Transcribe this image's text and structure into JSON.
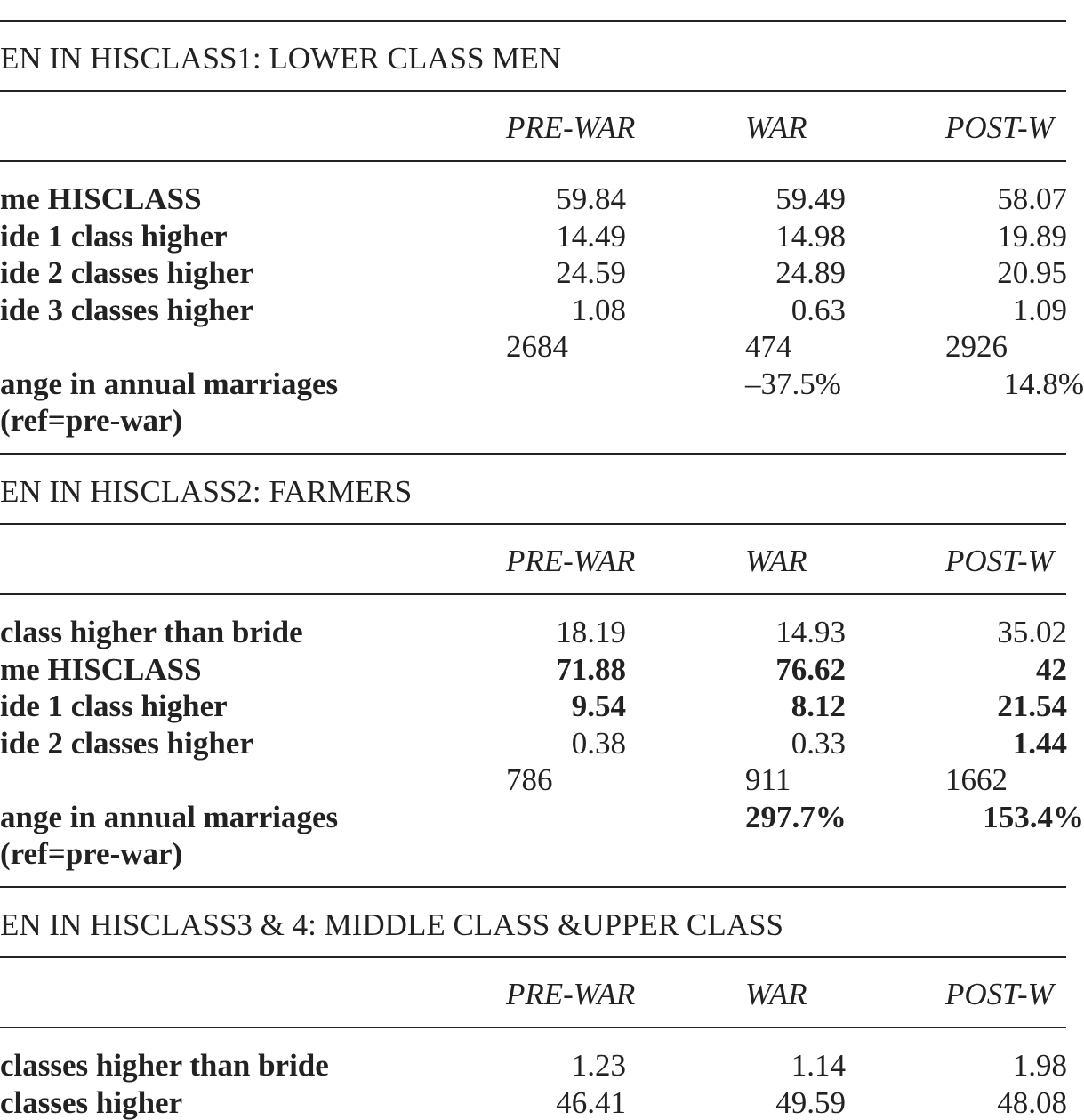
{
  "columns": [
    "PRE-WAR",
    "WAR",
    "POST-W"
  ],
  "sections": [
    {
      "title": "EN IN HISCLASS1: LOWER CLASS MEN",
      "rows": [
        {
          "label": "me HISCLASS",
          "label_bold": true,
          "values": [
            "59.84",
            "59.49",
            "58.07"
          ],
          "bold": [
            false,
            false,
            false
          ]
        },
        {
          "label": "ide 1 class higher",
          "label_bold": true,
          "values": [
            "14.49",
            "14.98",
            "19.89"
          ],
          "bold": [
            false,
            false,
            false
          ]
        },
        {
          "label": "ide 2 classes higher",
          "label_bold": true,
          "values": [
            "24.59",
            "24.89",
            "20.95"
          ],
          "bold": [
            false,
            false,
            false
          ]
        },
        {
          "label": "ide 3 classes higher",
          "label_bold": true,
          "values": [
            "1.08",
            "0.63",
            "1.09"
          ],
          "bold": [
            false,
            false,
            false
          ]
        },
        {
          "label": "",
          "label_bold": false,
          "values": [
            "2684",
            "474",
            "2926"
          ],
          "bold": [
            false,
            false,
            false
          ],
          "left_aligned": true
        },
        {
          "label": "ange in annual marriages",
          "label_bold": true,
          "values": [
            "",
            "–37.5%",
            "14.8%"
          ],
          "bold": [
            false,
            false,
            false
          ],
          "pct": true
        },
        {
          "label": "(ref=pre-war)",
          "label_bold": true,
          "values": [
            "",
            "",
            ""
          ],
          "bold": [
            false,
            false,
            false
          ]
        }
      ]
    },
    {
      "title": "EN IN HISCLASS2: FARMERS",
      "rows": [
        {
          "label": "class higher than bride",
          "label_bold": true,
          "values": [
            "18.19",
            "14.93",
            "35.02"
          ],
          "bold": [
            false,
            false,
            false
          ]
        },
        {
          "label": "me HISCLASS",
          "label_bold": true,
          "values": [
            "71.88",
            "76.62",
            "42"
          ],
          "bold": [
            true,
            true,
            true
          ]
        },
        {
          "label": "ide 1 class higher",
          "label_bold": true,
          "values": [
            "9.54",
            "8.12",
            "21.54"
          ],
          "bold": [
            true,
            true,
            true
          ]
        },
        {
          "label": "ide 2 classes higher",
          "label_bold": true,
          "values": [
            "0.38",
            "0.33",
            "1.44"
          ],
          "bold": [
            false,
            false,
            true
          ]
        },
        {
          "label": "",
          "label_bold": false,
          "values": [
            "786",
            "911",
            "1662"
          ],
          "bold": [
            false,
            false,
            false
          ],
          "left_aligned": true
        },
        {
          "label": "ange in annual marriages",
          "label_bold": true,
          "values": [
            "",
            "297.7%",
            "153.4%"
          ],
          "bold": [
            false,
            true,
            true
          ],
          "pct": true
        },
        {
          "label": "(ref=pre-war)",
          "label_bold": true,
          "values": [
            "",
            "",
            ""
          ],
          "bold": [
            false,
            false,
            false
          ]
        }
      ]
    },
    {
      "title": "EN IN HISCLASS3 & 4: MIDDLE CLASS &UPPER CLASS",
      "rows": [
        {
          "label": "classes higher than bride",
          "label_bold": true,
          "values": [
            "1.23",
            "1.14",
            "1.98"
          ],
          "bold": [
            false,
            false,
            false
          ]
        },
        {
          "label": "classes higher",
          "label_bold": true,
          "values": [
            "46.41",
            "49.59",
            "48.08"
          ],
          "bold": [
            false,
            false,
            false
          ]
        }
      ]
    }
  ]
}
